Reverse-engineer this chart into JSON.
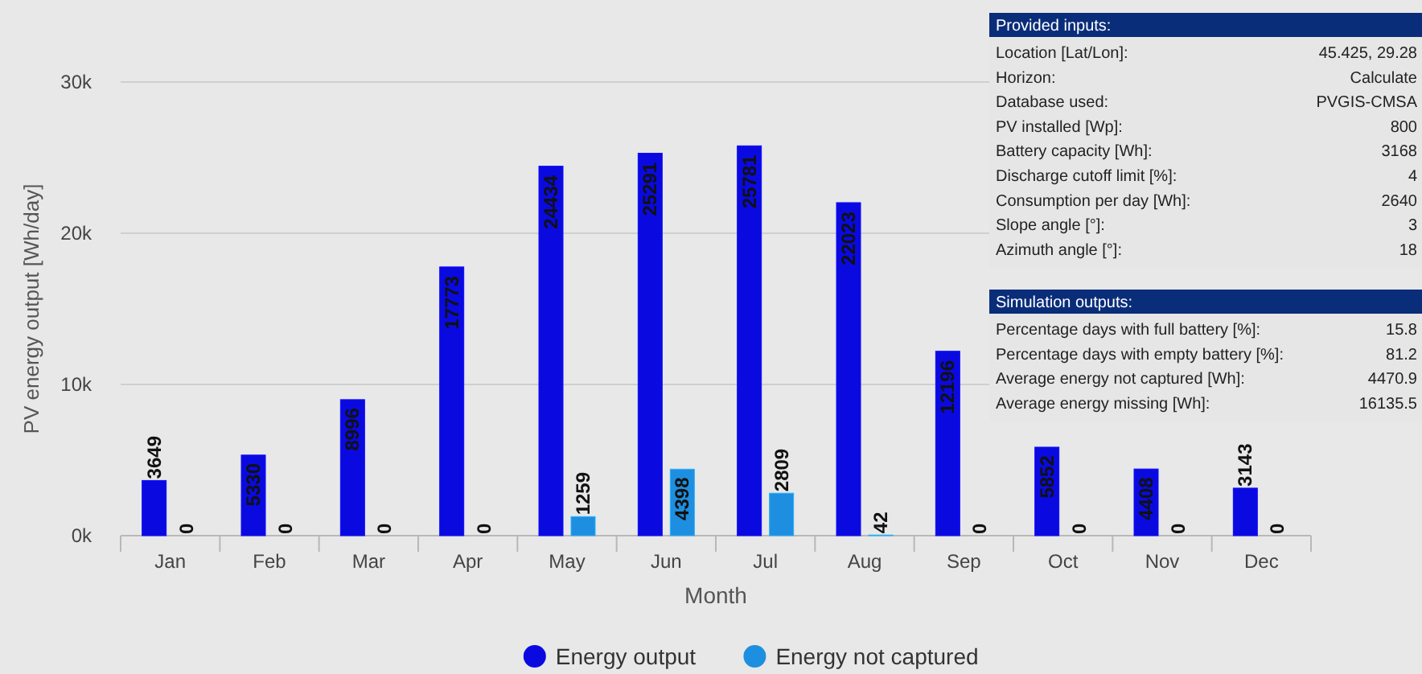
{
  "chart_data": [
    {
      "type": "bar",
      "xlabel": "Month",
      "ylabel": "PV energy output [Wh/day]",
      "categories": [
        "Jan",
        "Feb",
        "Mar",
        "Apr",
        "May",
        "Jun",
        "Jul",
        "Aug",
        "Sep",
        "Oct",
        "Nov",
        "Dec"
      ],
      "series": [
        {
          "name": "Energy output",
          "color": "#0a0ae0",
          "values": [
            3649,
            5330,
            8996,
            17773,
            24434,
            25291,
            25781,
            22023,
            12196,
            5852,
            4408,
            3143
          ]
        },
        {
          "name": "Energy not captured",
          "color": "#1e8fe0",
          "values": [
            0,
            0,
            0,
            0,
            1259,
            4398,
            2809,
            42,
            0,
            0,
            0,
            0
          ]
        }
      ],
      "ylim": [
        0,
        30000
      ],
      "yticks": [
        {
          "value": 0,
          "label": "0k"
        },
        {
          "value": 10000,
          "label": "10k"
        },
        {
          "value": 20000,
          "label": "20k"
        },
        {
          "value": 30000,
          "label": "30k"
        }
      ],
      "grid": "y",
      "legend": "bottom",
      "data_labels": true
    },
    {
      "type": "other",
      "title": "Provided inputs:",
      "annotations": [
        "Location [Lat/Lon]:",
        "45.425, 29.28",
        "Horizon:",
        "Calculate",
        "Database used:",
        "PVGIS-CMSA",
        "PV installed [Wp]:",
        "800",
        "Battery capacity [Wh]:",
        "3168",
        "Discharge cutoff limit [%]:",
        "4",
        "Consumption per day [Wh]:",
        "2640",
        "Slope angle [°]:",
        "3",
        "Azimuth angle [°]:",
        "18"
      ]
    },
    {
      "type": "other",
      "title": "Simulation outputs:",
      "annotations": [
        "Percentage days with full battery [%]:",
        "15.8",
        "Percentage days with empty battery [%]:",
        "81.2",
        "Average energy not captured [Wh]:",
        "4470.9",
        "Average energy missing [Wh]:",
        "16135.5"
      ]
    }
  ]
}
